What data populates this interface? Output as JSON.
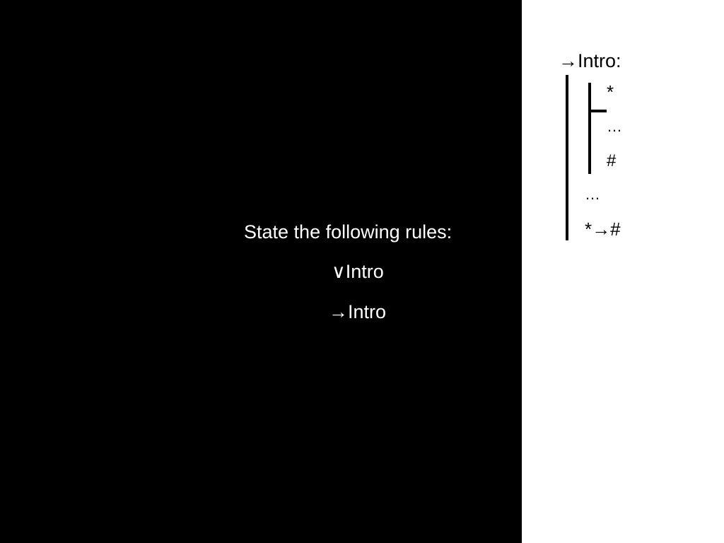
{
  "prompt": {
    "title": "State the following rules:",
    "rules": [
      "∨Intro",
      "→Intro"
    ]
  },
  "proof": {
    "title": "→Intro:",
    "subproof": {
      "assumption": "*",
      "ellipsis": "…",
      "result": "#"
    },
    "ellipsis": "…",
    "conclusion": "*→#"
  },
  "colors": {
    "left_background": "#000000",
    "right_background": "#ffffff",
    "left_text": "#ffffff",
    "right_text": "#000000"
  }
}
